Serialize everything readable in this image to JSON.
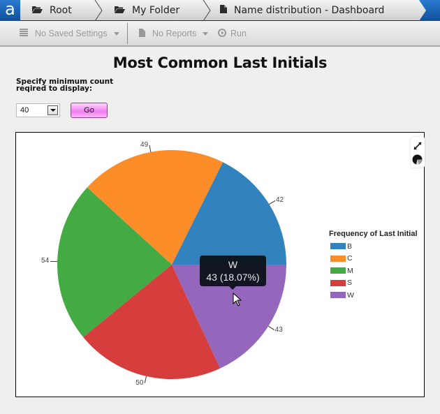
{
  "app": {
    "logo_letter": "a"
  },
  "breadcrumb": [
    {
      "label": "Root",
      "icon": "folder-icon"
    },
    {
      "label": "My Folder",
      "icon": "folder-icon"
    },
    {
      "label": "Name distribution - Dashboard",
      "icon": "document-icon"
    }
  ],
  "toolbar": {
    "saved_settings_label": "No Saved Settings",
    "reports_label": "No Reports",
    "run_label": "Run"
  },
  "page": {
    "title": "Most Common Last Initials",
    "min_count_label_line1": "Specify minimum count",
    "min_count_label_line2": "reqired to display:",
    "min_count_value": "40",
    "go_label": "Go"
  },
  "chart_tools": {
    "expand_icon": "expand-icon",
    "chart_type_icon": "pie-chart-icon"
  },
  "tooltip": {
    "category": "W",
    "value_text": "43 (18.07%)"
  },
  "colors": {
    "B": "#3182bd",
    "C": "#fd8d28",
    "M": "#44aa44",
    "S": "#d63d3d",
    "W": "#9467bd"
  },
  "chart_data": {
    "type": "pie",
    "title": "Most Common Last Initials",
    "legend_title": "Frequency of Last Initial",
    "legend_position": "right",
    "categories": [
      "B",
      "C",
      "M",
      "S",
      "W"
    ],
    "values": [
      42,
      49,
      54,
      50,
      43
    ],
    "percentages": [
      17.65,
      20.59,
      22.69,
      21.01,
      18.07
    ],
    "colors": [
      "#3182bd",
      "#fd8d28",
      "#44aa44",
      "#d63d3d",
      "#9467bd"
    ],
    "hovered": {
      "category": "W",
      "value": 43,
      "percent": "18.07%"
    }
  }
}
